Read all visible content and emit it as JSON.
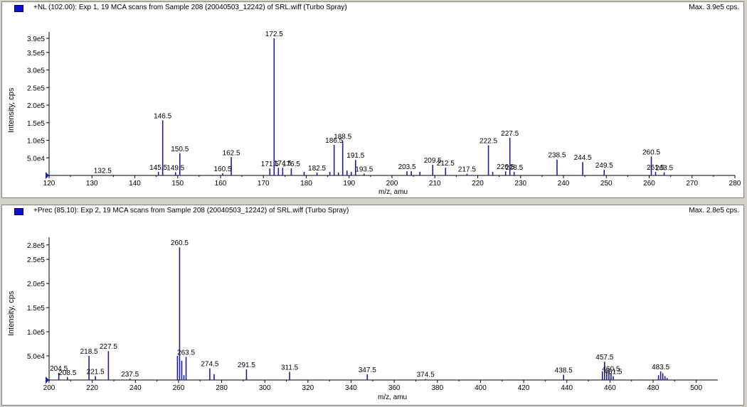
{
  "colors": {
    "peak": "#1c1ca0",
    "axis": "#000000",
    "background": "#ffffff"
  },
  "chart_data": [
    {
      "type": "bar",
      "title": "+NL (102.00): Exp 1, 19 MCA scans from Sample 208 (20040503_12242) of SRL.wiff (Turbo Spray)",
      "max_label": "Max. 3.9e5 cps.",
      "xlabel": "m/z, amu",
      "ylabel": "Intensity, cps",
      "xlim": [
        120,
        280
      ],
      "ylim": [
        0,
        400000
      ],
      "xticks": [
        120,
        130,
        140,
        150,
        160,
        170,
        180,
        190,
        200,
        210,
        220,
        230,
        240,
        250,
        260,
        270,
        280
      ],
      "yticks": [
        {
          "v": 50000,
          "label": "5.0e4"
        },
        {
          "v": 100000,
          "label": "1.0e5"
        },
        {
          "v": 150000,
          "label": "1.5e5"
        },
        {
          "v": 200000,
          "label": "2.0e5"
        },
        {
          "v": 250000,
          "label": "2.5e5"
        },
        {
          "v": 300000,
          "label": "3.0e5"
        },
        {
          "v": 350000,
          "label": "3.5e5"
        },
        {
          "v": 390000,
          "label": "3.9e5"
        }
      ],
      "peaks": [
        {
          "x": 145.5,
          "y": 10000
        },
        {
          "x": 146.5,
          "y": 157000
        },
        {
          "x": 149.5,
          "y": 9000
        },
        {
          "x": 150.5,
          "y": 63000
        },
        {
          "x": 160.5,
          "y": 6000
        },
        {
          "x": 162.5,
          "y": 52000
        },
        {
          "x": 171.5,
          "y": 20000
        },
        {
          "x": 172.5,
          "y": 390000
        },
        {
          "x": 173.5,
          "y": 22000
        },
        {
          "x": 174.5,
          "y": 22000
        },
        {
          "x": 176.5,
          "y": 20000
        },
        {
          "x": 179.5,
          "y": 10000
        },
        {
          "x": 182.5,
          "y": 8000
        },
        {
          "x": 185.5,
          "y": 10000
        },
        {
          "x": 186.5,
          "y": 87000
        },
        {
          "x": 187.5,
          "y": 8000
        },
        {
          "x": 188.5,
          "y": 98000
        },
        {
          "x": 189.5,
          "y": 14000
        },
        {
          "x": 190.5,
          "y": 10000
        },
        {
          "x": 191.5,
          "y": 44000
        },
        {
          "x": 193.5,
          "y": 5000
        },
        {
          "x": 203.5,
          "y": 12000
        },
        {
          "x": 204.5,
          "y": 12000
        },
        {
          "x": 206.5,
          "y": 10000
        },
        {
          "x": 209.5,
          "y": 30000
        },
        {
          "x": 212.5,
          "y": 22000
        },
        {
          "x": 217.5,
          "y": 5000
        },
        {
          "x": 222.5,
          "y": 86000
        },
        {
          "x": 223.5,
          "y": 10000
        },
        {
          "x": 226.5,
          "y": 12000
        },
        {
          "x": 227.5,
          "y": 107000
        },
        {
          "x": 228.5,
          "y": 10000
        },
        {
          "x": 238.5,
          "y": 45000
        },
        {
          "x": 244.5,
          "y": 38000
        },
        {
          "x": 249.5,
          "y": 16000
        },
        {
          "x": 260.5,
          "y": 54000
        },
        {
          "x": 261.5,
          "y": 10000
        },
        {
          "x": 263.5,
          "y": 9000
        }
      ],
      "labels": [
        {
          "x": 132.5,
          "y": 1000,
          "text": "132.5"
        },
        {
          "x": 145.5,
          "y": 10000,
          "text": "145.5"
        },
        {
          "x": 146.5,
          "y": 157000,
          "text": "146.5"
        },
        {
          "x": 149.5,
          "y": 9000,
          "text": "149.5"
        },
        {
          "x": 150.5,
          "y": 63000,
          "text": "150.5"
        },
        {
          "x": 160.5,
          "y": 6000,
          "text": "160.5"
        },
        {
          "x": 162.5,
          "y": 52000,
          "text": "162.5"
        },
        {
          "x": 171.5,
          "y": 20000,
          "text": "171.5"
        },
        {
          "x": 172.5,
          "y": 390000,
          "text": "172.5"
        },
        {
          "x": 174.5,
          "y": 22000,
          "text": "174.5"
        },
        {
          "x": 176.5,
          "y": 20000,
          "text": "176.5"
        },
        {
          "x": 182.5,
          "y": 8000,
          "text": "182.5"
        },
        {
          "x": 186.5,
          "y": 87000,
          "text": "186.5"
        },
        {
          "x": 188.5,
          "y": 98000,
          "text": "188.5"
        },
        {
          "x": 191.5,
          "y": 44000,
          "text": "191.5"
        },
        {
          "x": 193.5,
          "y": 5000,
          "text": "193.5"
        },
        {
          "x": 203.5,
          "y": 12000,
          "text": "203.5"
        },
        {
          "x": 209.5,
          "y": 30000,
          "text": "209.5"
        },
        {
          "x": 212.5,
          "y": 22000,
          "text": "212.5"
        },
        {
          "x": 217.5,
          "y": 5000,
          "text": "217.5"
        },
        {
          "x": 222.5,
          "y": 86000,
          "text": "222.5"
        },
        {
          "x": 226.5,
          "y": 12000,
          "text": "226.5"
        },
        {
          "x": 227.5,
          "y": 107000,
          "text": "227.5"
        },
        {
          "x": 228.5,
          "y": 10000,
          "text": "228.5"
        },
        {
          "x": 238.5,
          "y": 45000,
          "text": "238.5"
        },
        {
          "x": 244.5,
          "y": 38000,
          "text": "244.5"
        },
        {
          "x": 249.5,
          "y": 16000,
          "text": "249.5"
        },
        {
          "x": 260.5,
          "y": 54000,
          "text": "260.5"
        },
        {
          "x": 261.5,
          "y": 10000,
          "text": "261.5"
        },
        {
          "x": 263.5,
          "y": 9000,
          "text": "263.5"
        }
      ]
    },
    {
      "type": "bar",
      "title": "+Prec (85.10): Exp 2, 19 MCA scans from Sample 208 (20040503_12242) of SRL.wiff (Turbo Spray)",
      "max_label": "Max. 2.8e5 cps.",
      "xlabel": "m/z, amu",
      "ylabel": "Intensity, cps",
      "xlim": [
        200,
        510
      ],
      "ylim": [
        0,
        290000
      ],
      "xticks": [
        200,
        220,
        240,
        260,
        280,
        300,
        320,
        340,
        360,
        380,
        400,
        420,
        440,
        460,
        480,
        500
      ],
      "yticks": [
        {
          "v": 50000,
          "label": "5.0e4"
        },
        {
          "v": 100000,
          "label": "1.0e5"
        },
        {
          "v": 150000,
          "label": "1.5e5"
        },
        {
          "v": 200000,
          "label": "2.0e5"
        },
        {
          "v": 250000,
          "label": "2.5e5"
        },
        {
          "v": 280000,
          "label": "2.8e5"
        }
      ],
      "peaks": [
        {
          "x": 204.5,
          "y": 15000
        },
        {
          "x": 208.5,
          "y": 6000
        },
        {
          "x": 218.5,
          "y": 50000
        },
        {
          "x": 221.5,
          "y": 8000
        },
        {
          "x": 227.5,
          "y": 60000
        },
        {
          "x": 237.5,
          "y": 3000
        },
        {
          "x": 259.5,
          "y": 50000
        },
        {
          "x": 260.5,
          "y": 275000
        },
        {
          "x": 261.5,
          "y": 40000
        },
        {
          "x": 262.5,
          "y": 10000
        },
        {
          "x": 263.5,
          "y": 48000
        },
        {
          "x": 274.5,
          "y": 24000
        },
        {
          "x": 276.5,
          "y": 12000
        },
        {
          "x": 291.5,
          "y": 22000
        },
        {
          "x": 311.5,
          "y": 17000
        },
        {
          "x": 347.5,
          "y": 12000
        },
        {
          "x": 374.5,
          "y": 2000
        },
        {
          "x": 438.5,
          "y": 11000
        },
        {
          "x": 456.5,
          "y": 18000
        },
        {
          "x": 457.5,
          "y": 38000
        },
        {
          "x": 458.5,
          "y": 18000
        },
        {
          "x": 459.5,
          "y": 24000
        },
        {
          "x": 460.5,
          "y": 14000
        },
        {
          "x": 461.5,
          "y": 8000
        },
        {
          "x": 482.5,
          "y": 10000
        },
        {
          "x": 483.5,
          "y": 18000
        },
        {
          "x": 484.5,
          "y": 14000
        },
        {
          "x": 485.5,
          "y": 8000
        },
        {
          "x": 486.5,
          "y": 4000
        }
      ],
      "labels": [
        {
          "x": 204.5,
          "y": 15000,
          "text": "204.5"
        },
        {
          "x": 208.5,
          "y": 6000,
          "text": "208.5"
        },
        {
          "x": 218.5,
          "y": 50000,
          "text": "218.5"
        },
        {
          "x": 221.5,
          "y": 8000,
          "text": "221.5"
        },
        {
          "x": 227.5,
          "y": 60000,
          "text": "227.5"
        },
        {
          "x": 237.5,
          "y": 3000,
          "text": "237.5"
        },
        {
          "x": 260.5,
          "y": 275000,
          "text": "260.5"
        },
        {
          "x": 263.5,
          "y": 48000,
          "text": "263.5"
        },
        {
          "x": 274.5,
          "y": 24000,
          "text": "274.5"
        },
        {
          "x": 291.5,
          "y": 22000,
          "text": "291.5"
        },
        {
          "x": 311.5,
          "y": 17000,
          "text": "311.5"
        },
        {
          "x": 347.5,
          "y": 12000,
          "text": "347.5"
        },
        {
          "x": 374.5,
          "y": 2000,
          "text": "374.5"
        },
        {
          "x": 438.5,
          "y": 11000,
          "text": "438.5"
        },
        {
          "x": 457.5,
          "y": 38000,
          "text": "457.5"
        },
        {
          "x": 460.5,
          "y": 14000,
          "text": "460.5"
        },
        {
          "x": 461.5,
          "y": 8000,
          "text": "461.5"
        },
        {
          "x": 483.5,
          "y": 18000,
          "text": "483.5"
        }
      ]
    }
  ]
}
